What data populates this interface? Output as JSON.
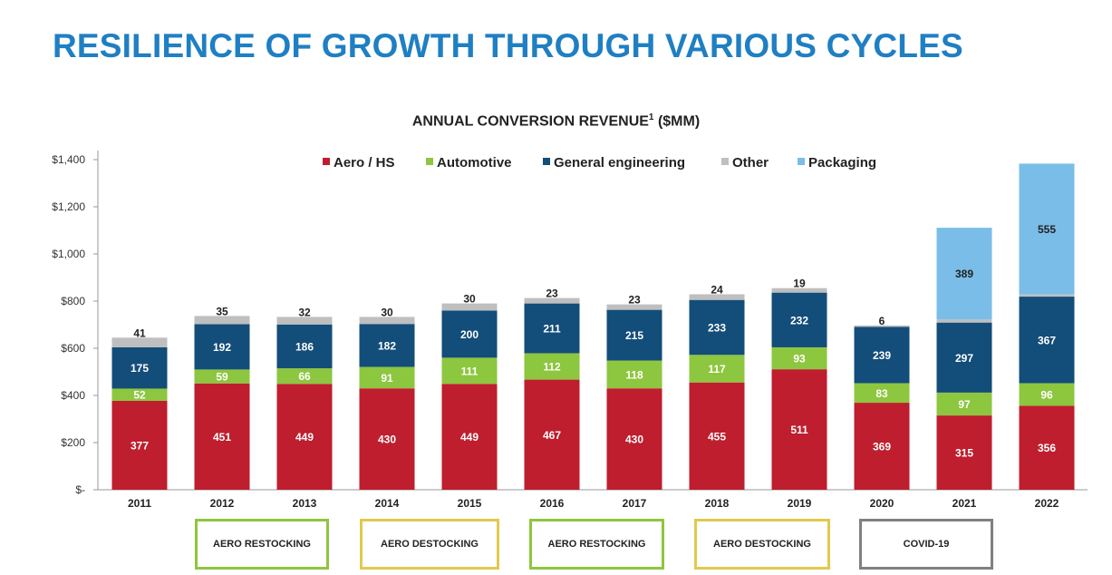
{
  "page": {
    "title": "RESILIENCE OF GROWTH THROUGH VARIOUS CYCLES"
  },
  "chart_data": {
    "type": "bar",
    "stacked": true,
    "title": "ANNUAL CONVERSION REVENUE",
    "title_superscript": "1",
    "title_suffix": "($MM)",
    "categories": [
      "2011",
      "2012",
      "2013",
      "2014",
      "2015",
      "2016",
      "2017",
      "2018",
      "2019",
      "2020",
      "2021",
      "2022"
    ],
    "series": [
      {
        "name": "Aero / HS",
        "color": "#be1e2d",
        "values": [
          377,
          451,
          449,
          430,
          449,
          467,
          430,
          455,
          511,
          369,
          315,
          356
        ]
      },
      {
        "name": "Automotive",
        "color": "#8dc63f",
        "values": [
          52,
          59,
          66,
          91,
          111,
          112,
          118,
          117,
          93,
          83,
          97,
          96
        ]
      },
      {
        "name": "General engineering",
        "color": "#134d7a",
        "values": [
          175,
          192,
          186,
          182,
          200,
          211,
          215,
          233,
          232,
          239,
          297,
          367
        ]
      },
      {
        "name": "Other",
        "color": "#bfbfbf",
        "values": [
          41,
          35,
          32,
          30,
          30,
          23,
          23,
          24,
          19,
          6,
          13,
          9
        ]
      },
      {
        "name": "Packaging",
        "color": "#7abde8",
        "values": [
          0,
          0,
          0,
          0,
          0,
          0,
          0,
          0,
          0,
          0,
          389,
          555
        ]
      }
    ],
    "ylim": [
      0,
      1400
    ],
    "yticks": [
      0,
      200,
      400,
      600,
      800,
      1000,
      1200,
      1400
    ],
    "ytick_labels": [
      "$-",
      "$200",
      "$400",
      "$600",
      "$800",
      "$1,000",
      "$1,200",
      "$1,400"
    ],
    "legend_position": "top",
    "grid": false
  },
  "cycles": [
    {
      "label": "AERO RESTOCKING",
      "color": "#8dc63f"
    },
    {
      "label": "AERO DESTOCKING",
      "color": "#e1c94e"
    },
    {
      "label": "AERO RESTOCKING",
      "color": "#8dc63f"
    },
    {
      "label": "AERO DESTOCKING",
      "color": "#e1c94e"
    },
    {
      "label": "COVID-19",
      "color": "#808080"
    }
  ]
}
